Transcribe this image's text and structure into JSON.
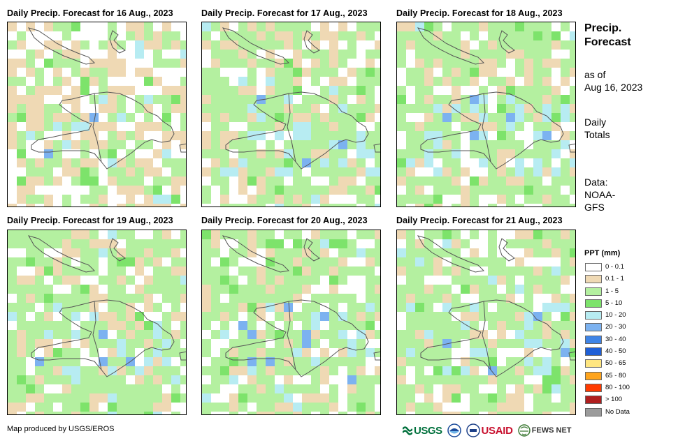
{
  "panels": [
    {
      "title": "Daily Precip. Forecast for 16 Aug., 2023"
    },
    {
      "title": "Daily Precip. Forecast for 17 Aug., 2023"
    },
    {
      "title": "Daily Precip. Forecast for 18 Aug., 2023"
    },
    {
      "title": "Daily Precip. Forecast for 19 Aug., 2023"
    },
    {
      "title": "Daily Precip. Forecast for 20 Aug., 2023"
    },
    {
      "title": "Daily Precip. Forecast for 21 Aug., 2023"
    }
  ],
  "side": {
    "title_line1": "Precip.",
    "title_line2": "Forecast",
    "asof_line1": "as of",
    "asof_line2": "Aug 16, 2023",
    "totals_line1": "Daily",
    "totals_line2": "Totals",
    "data_line1": "Data:",
    "data_line2": "NOAA-",
    "data_line3": "GFS"
  },
  "legend": {
    "title": "PPT (mm)",
    "items": [
      {
        "label": "0 - 0.1",
        "color": "#ffffff"
      },
      {
        "label": "0.1 - 1",
        "color": "#efd9b4"
      },
      {
        "label": "1 - 5",
        "color": "#b4f0a0"
      },
      {
        "label": "5 - 10",
        "color": "#7de36b"
      },
      {
        "label": "10 - 20",
        "color": "#b7ecf2"
      },
      {
        "label": "20 - 30",
        "color": "#7cb2f0"
      },
      {
        "label": "30 - 40",
        "color": "#3f84e6"
      },
      {
        "label": "40 - 50",
        "color": "#1f5fd6"
      },
      {
        "label": "50 - 65",
        "color": "#ffe680"
      },
      {
        "label": "65 - 80",
        "color": "#ffa41c"
      },
      {
        "label": "80 - 100",
        "color": "#ff3a00"
      },
      {
        "label": "> 100",
        "color": "#b01e1e"
      },
      {
        "label": "No Data",
        "color": "#9b9b9b"
      }
    ]
  },
  "footer": {
    "credit": "Map produced by USGS/EROS",
    "logos": {
      "usgs": "USGS",
      "usaid": "USAID",
      "fewsnet": "FEWS NET"
    }
  }
}
